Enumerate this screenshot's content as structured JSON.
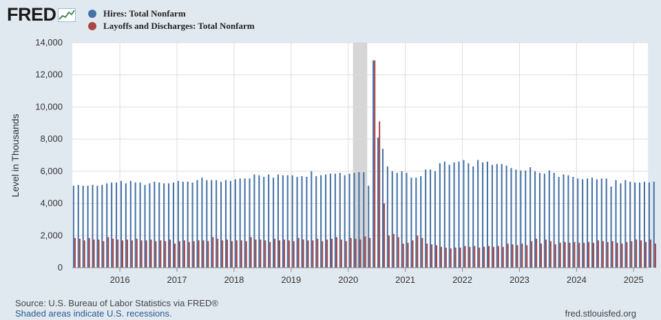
{
  "logo": {
    "text": "FRED"
  },
  "legend": [
    {
      "label": "Hires: Total Nonfarm",
      "color": "#4572a7"
    },
    {
      "label": "Layoffs and Discharges: Total Nonfarm",
      "color": "#aa4643"
    }
  ],
  "source": "Source: U.S. Bureau of Labor Statistics via FRED®",
  "recession_note": "Shaded areas indicate U.S. recessions.",
  "site": "fred.stlouisfed.org",
  "chart_data": {
    "type": "bar",
    "ylabel": "Level in Thousands",
    "ylim": [
      0,
      14000
    ],
    "yticks": [
      0,
      2000,
      4000,
      6000,
      8000,
      10000,
      12000,
      14000
    ],
    "ytick_labels": [
      "0",
      "2,000",
      "4,000",
      "6,000",
      "8,000",
      "10,000",
      "12,000",
      "14,000"
    ],
    "xticks": [
      "2016",
      "2017",
      "2018",
      "2019",
      "2020",
      "2021",
      "2022",
      "2023",
      "2024",
      "2025"
    ],
    "x_start": "2015-03",
    "x_end": "2025-03",
    "frequency": "monthly",
    "grid": true,
    "recession": {
      "start": "2020-02",
      "end": "2020-04"
    },
    "series": [
      {
        "name": "Hires: Total Nonfarm",
        "color": "#4572a7",
        "values": [
          5100,
          5150,
          5100,
          5100,
          5150,
          5100,
          5150,
          5250,
          5300,
          5300,
          5400,
          5250,
          5400,
          5300,
          5300,
          5150,
          5250,
          5350,
          5300,
          5250,
          5250,
          5300,
          5400,
          5350,
          5350,
          5300,
          5450,
          5600,
          5450,
          5450,
          5450,
          5350,
          5450,
          5400,
          5500,
          5550,
          5550,
          5550,
          5800,
          5750,
          5650,
          5800,
          5600,
          5800,
          5750,
          5750,
          5750,
          5650,
          5700,
          5650,
          6000,
          5700,
          5750,
          5800,
          5850,
          5850,
          5900,
          5750,
          5850,
          5900,
          5950,
          5950,
          5100,
          12900,
          8100,
          7400,
          6300,
          6000,
          5900,
          6000,
          5900,
          5600,
          5600,
          5700,
          6100,
          6100,
          6000,
          6500,
          6600,
          6400,
          6550,
          6600,
          6700,
          6500,
          6300,
          6700,
          6550,
          6600,
          6400,
          6450,
          6450,
          6350,
          6200,
          6100,
          6050,
          6050,
          6250,
          6000,
          5900,
          5850,
          6050,
          5900,
          5650,
          5800,
          5750,
          5650,
          5550,
          5500,
          5550,
          5600,
          5500,
          5550,
          5550,
          5050,
          5450,
          5250,
          5450,
          5350,
          5300,
          5300,
          5350,
          5300,
          5350
        ]
      },
      {
        "name": "Layoffs and Discharges: Total Nonfarm",
        "color": "#aa4643",
        "values": [
          1850,
          1800,
          1700,
          1850,
          1750,
          1750,
          1650,
          1900,
          1800,
          1750,
          1700,
          1750,
          1700,
          1800,
          1700,
          1700,
          1750,
          1650,
          1700,
          1650,
          1750,
          1500,
          1650,
          1700,
          1600,
          1650,
          1700,
          1700,
          1650,
          1900,
          1800,
          1700,
          1750,
          1650,
          1700,
          1700,
          1650,
          1900,
          1750,
          1750,
          1700,
          1600,
          1800,
          1700,
          1750,
          1700,
          1650,
          1850,
          1750,
          1700,
          1700,
          1800,
          1650,
          1750,
          1800,
          1900,
          1750,
          1650,
          1850,
          1800,
          1750,
          1950,
          1850,
          12900,
          9100,
          4000,
          2000,
          2100,
          1900,
          1500,
          1550,
          1700,
          2000,
          1850,
          1500,
          1450,
          1400,
          1300,
          1250,
          1200,
          1250,
          1250,
          1350,
          1300,
          1350,
          1250,
          1300,
          1350,
          1300,
          1350,
          1300,
          1500,
          1450,
          1400,
          1500,
          1400,
          1650,
          1800,
          1500,
          1750,
          1650,
          1450,
          1550,
          1600,
          1550,
          1600,
          1550,
          1550,
          1600,
          1550,
          1700,
          1650,
          1600,
          1650,
          1550,
          1500,
          1600,
          1650,
          1750,
          1700,
          1600,
          1750,
          1500
        ]
      }
    ]
  }
}
